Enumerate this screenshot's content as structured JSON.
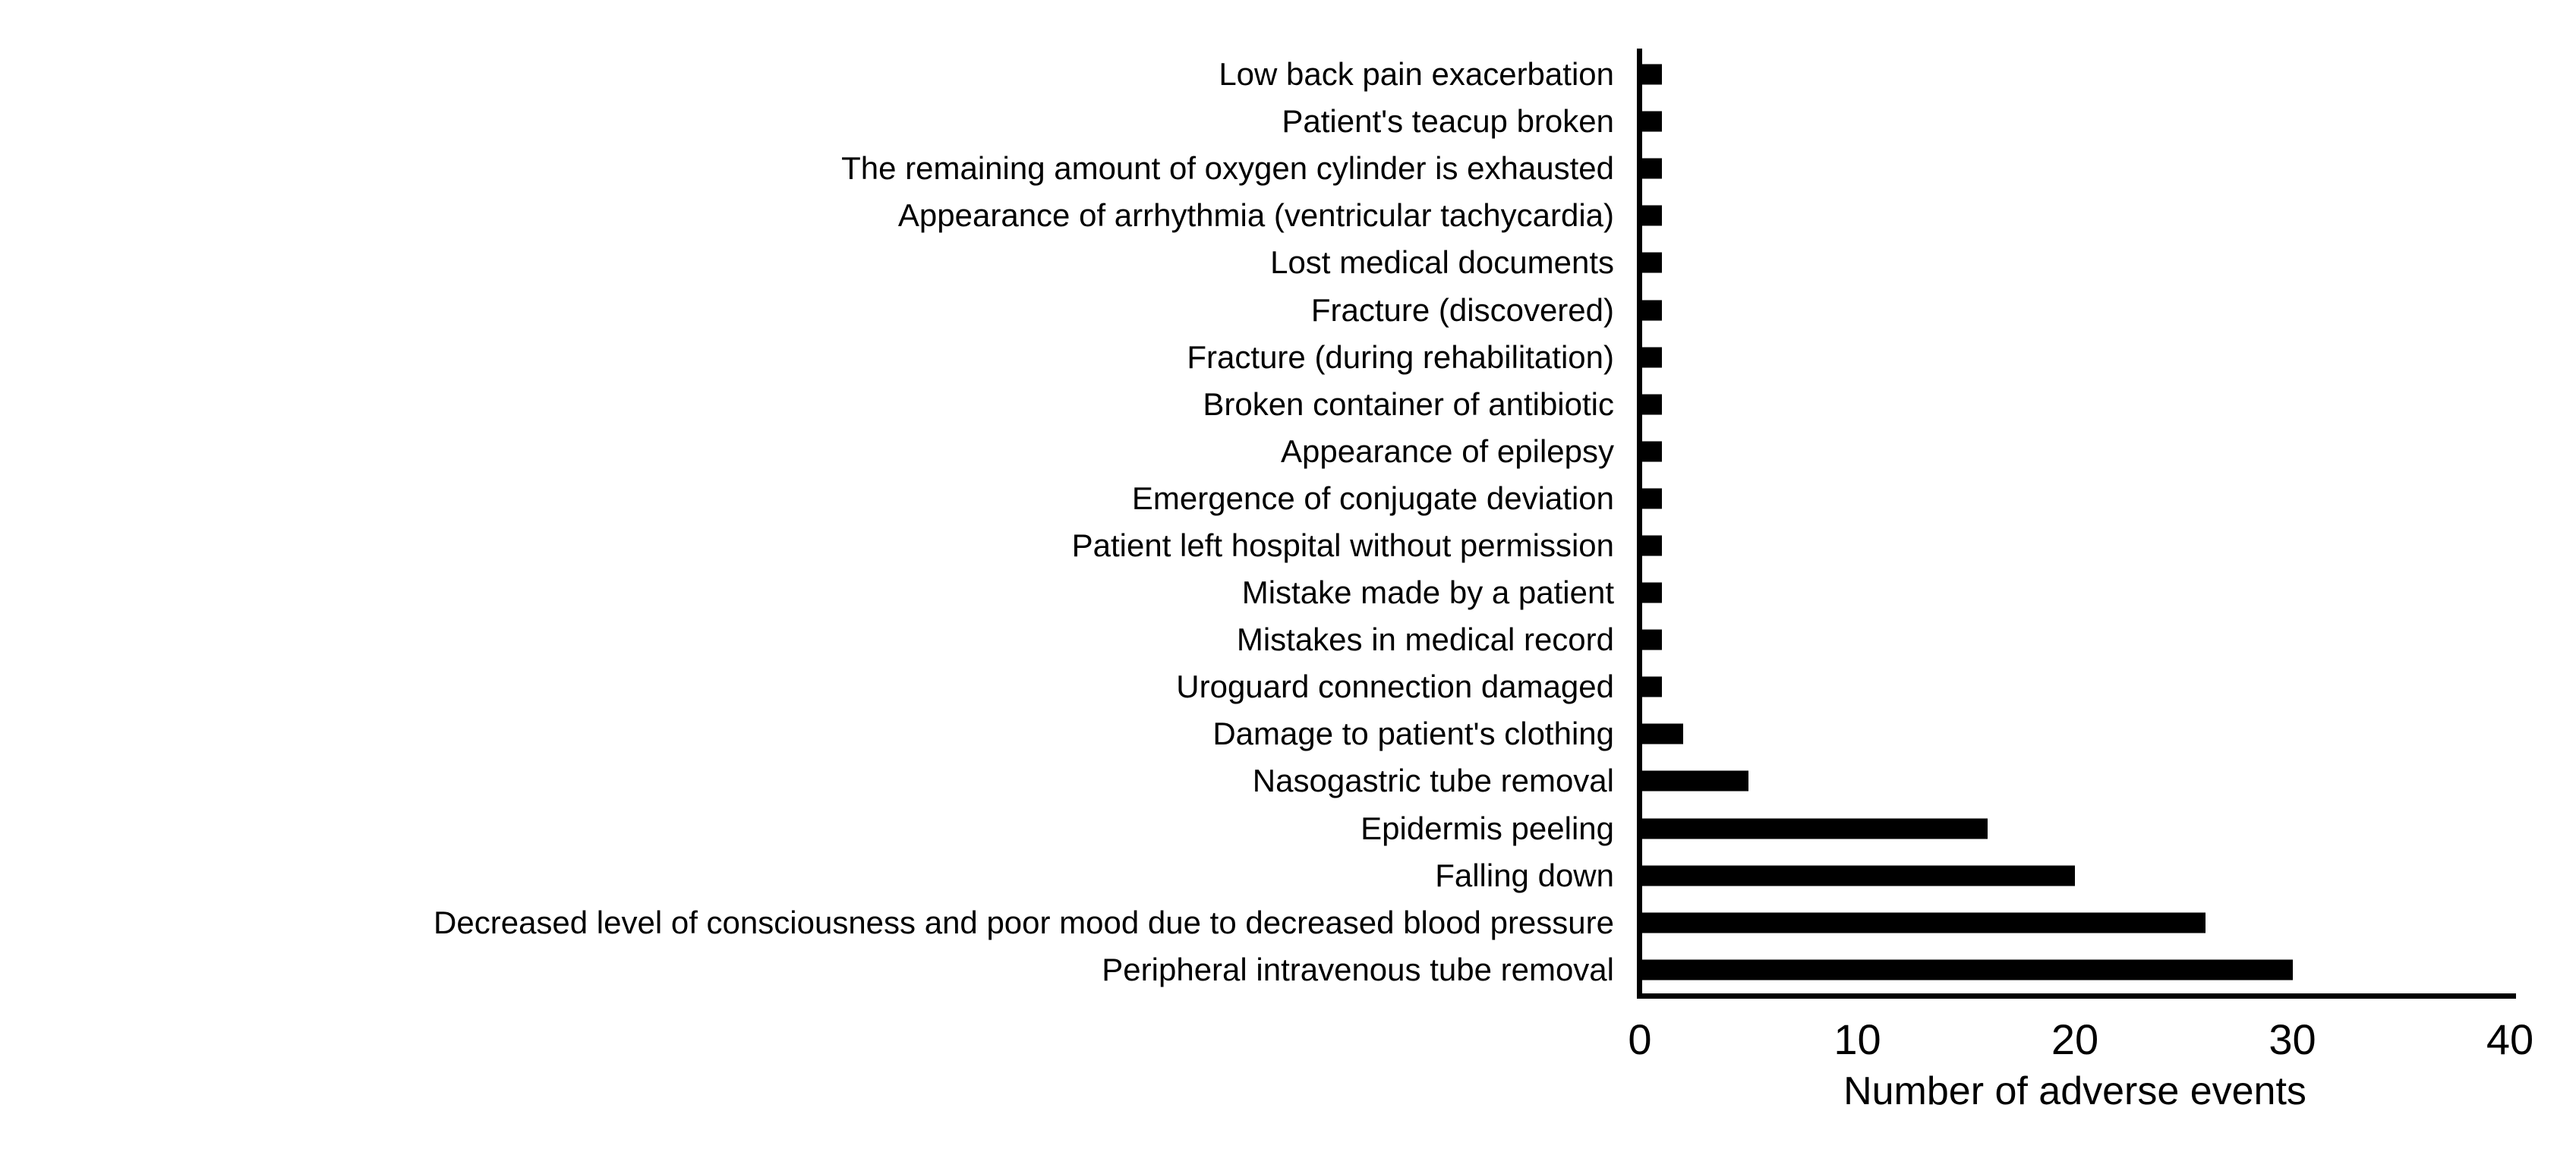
{
  "figure": {
    "background": "#ffffff",
    "text_color": "#000000"
  },
  "chart_data": {
    "type": "bar",
    "orientation": "horizontal",
    "title": "",
    "xlabel": "Number of adverse events",
    "ylabel": "",
    "xlim": [
      0,
      40
    ],
    "xticks": [
      0,
      10,
      20,
      30,
      40
    ],
    "grid": false,
    "legend": false,
    "bar_color": "#000000",
    "categories": [
      "Low back pain exacerbation",
      "Patient's teacup broken",
      "The remaining amount of oxygen cylinder is exhausted",
      "Appearance of arrhythmia (ventricular tachycardia)",
      "Lost medical documents",
      "Fracture (discovered)",
      "Fracture (during rehabilitation)",
      "Broken container of antibiotic",
      "Appearance of epilepsy",
      "Emergence of conjugate deviation",
      "Patient left hospital without permission",
      "Mistake made by a patient",
      "Mistakes in medical record",
      "Uroguard connection damaged",
      "Damage to patient's clothing",
      "Nasogastric tube removal",
      "Epidermis peeling",
      "Falling down",
      "Decreased level of consciousness and poor mood due to decreased blood pressure",
      "Peripheral intravenous tube removal"
    ],
    "values": [
      1,
      1,
      1,
      1,
      1,
      1,
      1,
      1,
      1,
      1,
      1,
      1,
      1,
      1,
      2,
      5,
      16,
      20,
      26,
      30
    ]
  }
}
